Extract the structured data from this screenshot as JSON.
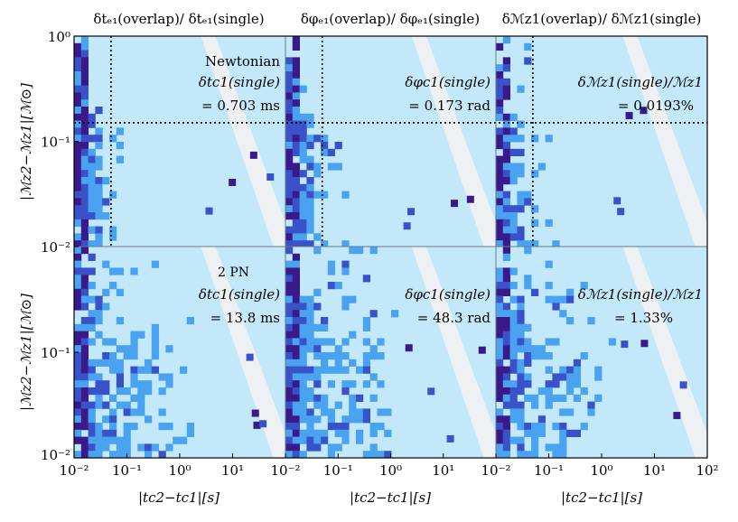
{
  "figure": {
    "columns": [
      {
        "title": "δtₑ₁(overlap)/ δtₑ₁(single)"
      },
      {
        "title": "δφₑ₁(overlap)/ δφₑ₁(single)"
      },
      {
        "title": "δℳz1(overlap)/ δℳz1(single)"
      }
    ],
    "rows": [
      {
        "label": "Newtonian",
        "panels": [
          {
            "line1": "δtc1(single)",
            "line2": "= 0.703 ms"
          },
          {
            "line1": "δφc1(single)",
            "line2": "= 0.173 rad"
          },
          {
            "line1": "δℳz1(single)/ℳz1",
            "line2": "= 0.0193%"
          }
        ]
      },
      {
        "label": "2 PN",
        "panels": [
          {
            "line1": "δtc1(single)",
            "line2": "= 13.8 ms"
          },
          {
            "line1": "δφc1(single)",
            "line2": "= 48.3 rad"
          },
          {
            "line1": "δℳz1(single)/ℳz1",
            "line2": "= 1.33%"
          }
        ]
      }
    ],
    "ylabel": "|ℳz2−ℳz1|[ℳ⊙]",
    "xlabel": "|tc2−tc1|[s]",
    "colors": {
      "background": "#c2e8fa",
      "level1": "#4aa3f0",
      "level2": "#3a52c8",
      "level3": "#3a1a8a",
      "stripe": "#eef1f4",
      "guide": "#000000"
    }
  },
  "chart_data": {
    "type": "heatmap",
    "xscale": "log",
    "yscale": "log",
    "xlim": [
      0.01,
      100
    ],
    "ylim": [
      0.01,
      1
    ],
    "xticks": [
      "10⁻²",
      "10⁻¹",
      "10⁰",
      "10¹",
      "10²"
    ],
    "yticks": [
      "10⁻²",
      "10⁻¹",
      "10⁰"
    ],
    "guide_lines": {
      "x": 0.05,
      "y": 0.15,
      "rows": [
        "Newtonian"
      ]
    }
  }
}
